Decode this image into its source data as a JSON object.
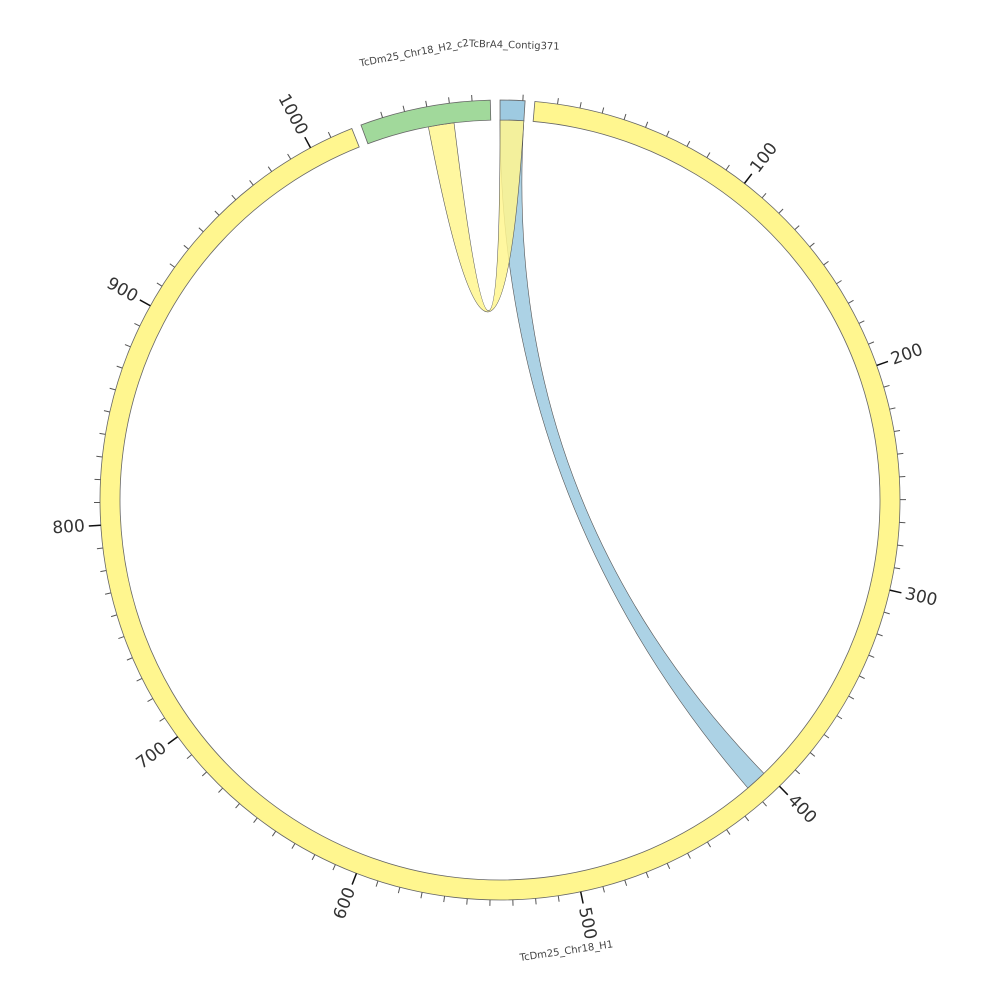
{
  "chart_data": {
    "type": "chord",
    "segments": [
      {
        "name": "TcDm25_Chr18_H1",
        "length": 1020,
        "color": "#fff68f",
        "ticks": [
          100,
          200,
          300,
          400,
          500,
          600,
          700,
          800,
          900,
          1000
        ]
      },
      {
        "name": "TcDm25_Chr18_H2_c2",
        "length": 58,
        "color": "#a1d99b",
        "ticks": []
      },
      {
        "name": "TcBrA4_Contig371",
        "length": 11,
        "color": "#9ecae1",
        "ticks": []
      }
    ],
    "minor_tick_interval": 10,
    "links": [
      {
        "source": {
          "segment": "TcBrA4_Contig371",
          "start": 0,
          "end": 11
        },
        "target": {
          "segment": "TcDm25_Chr18_H1",
          "start": 401,
          "end": 411
        },
        "color": "#9ecae1"
      },
      {
        "source": {
          "segment": "TcDm25_Chr18_H2_c2",
          "start": 29,
          "end": 41
        },
        "target": {
          "segment": "TcBrA4_Contig371",
          "start": 0,
          "end": 11
        },
        "color": "#fff68f"
      }
    ]
  }
}
